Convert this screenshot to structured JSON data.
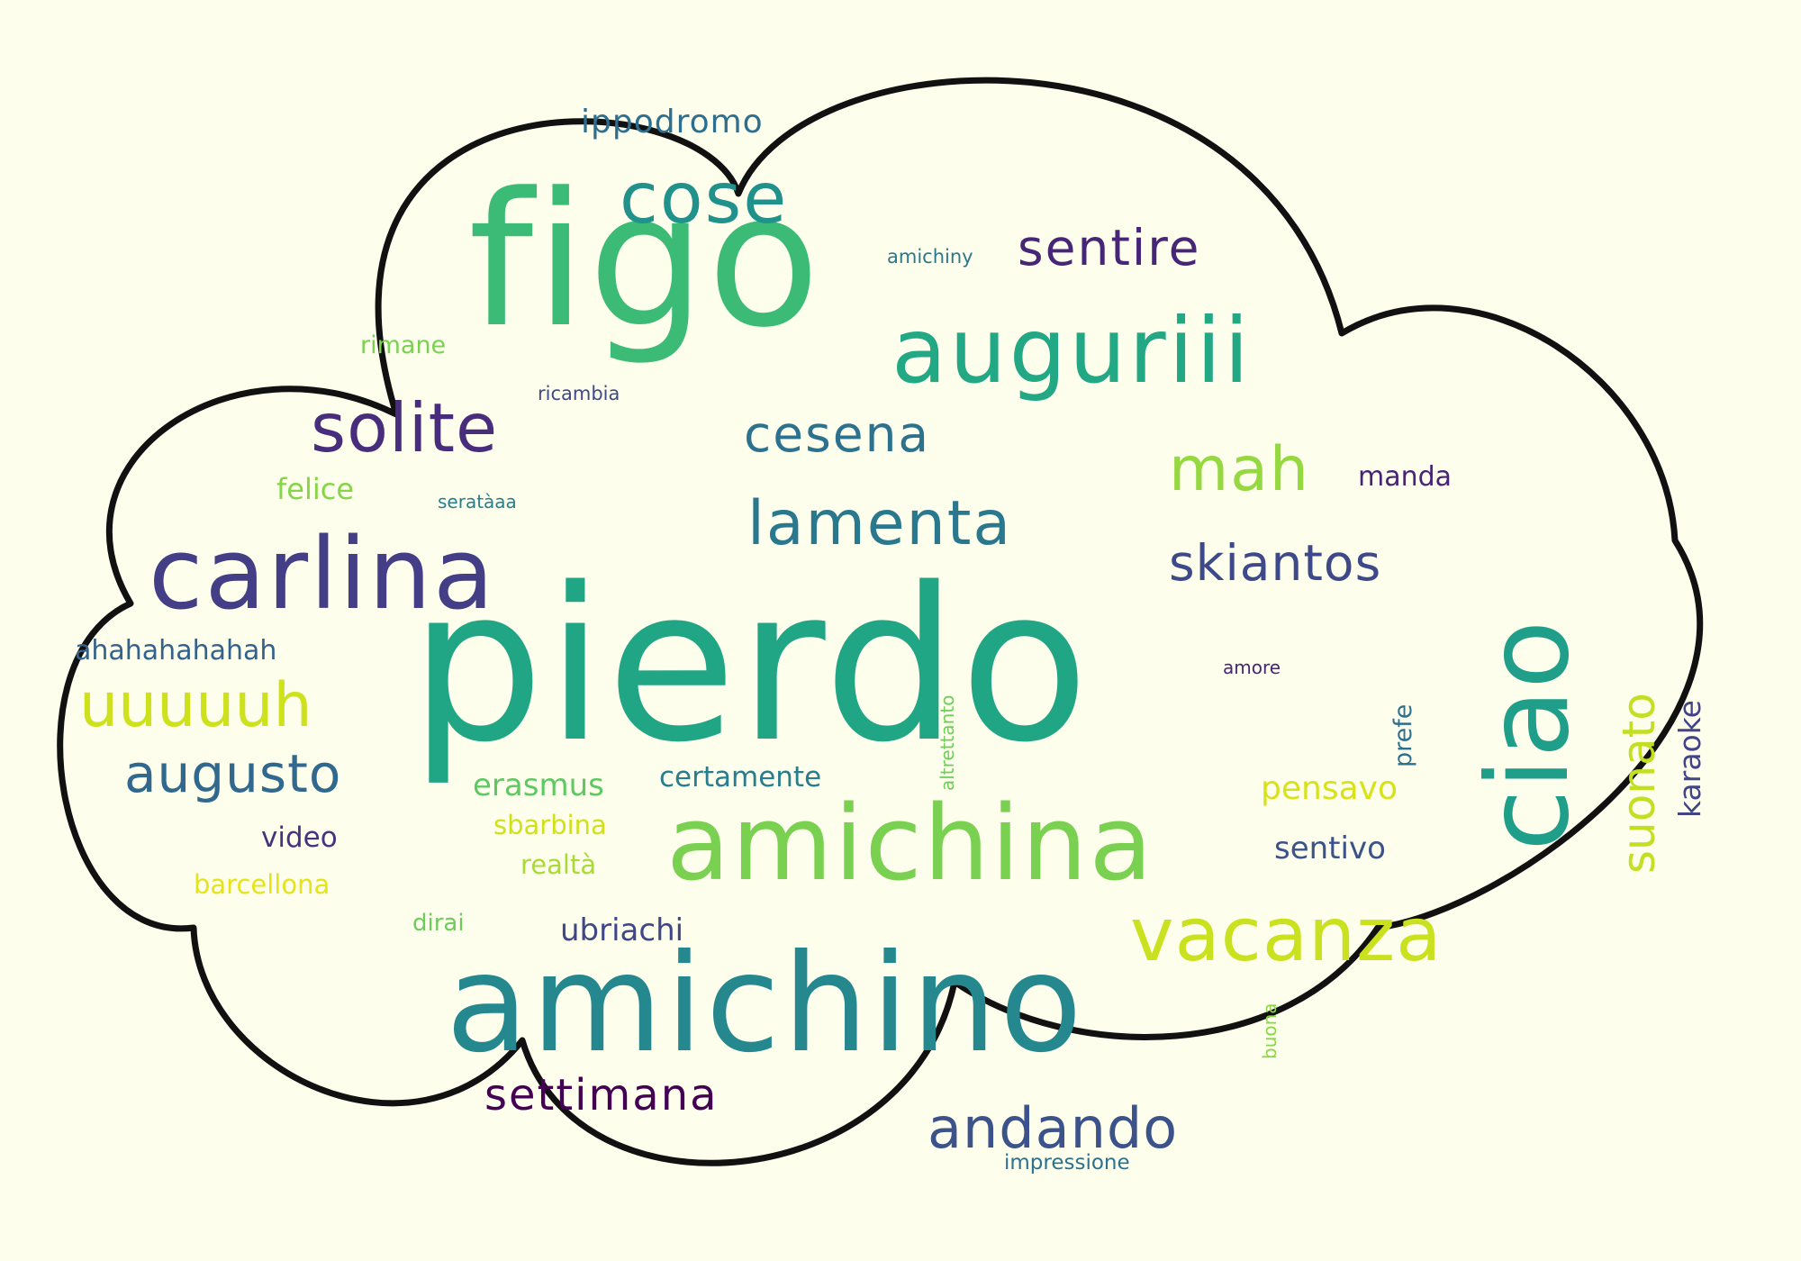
{
  "colors": {
    "background": "#fdfeec",
    "cloud_fill": "#fdfeec",
    "cloud_outline": "#111111"
  },
  "words": [
    {
      "text": "pierdo",
      "color": "#21a685"
    },
    {
      "text": "figo",
      "color": "#3bbb75"
    },
    {
      "text": "amichino",
      "color": "#25888e"
    },
    {
      "text": "amichina",
      "color": "#7ad151"
    },
    {
      "text": "auguriii",
      "color": "#22a884"
    },
    {
      "text": "ciao",
      "color": "#1f9e89"
    },
    {
      "text": "carlina",
      "color": "#433e85"
    },
    {
      "text": "vacanza",
      "color": "#cae11f"
    },
    {
      "text": "cose",
      "color": "#21918c"
    },
    {
      "text": "lamenta",
      "color": "#2a788e"
    },
    {
      "text": "solite",
      "color": "#472d7b"
    },
    {
      "text": "uuuuuh",
      "color": "#cde11d"
    },
    {
      "text": "andando",
      "color": "#3b528b"
    },
    {
      "text": "cesena",
      "color": "#2c728e"
    },
    {
      "text": "sentire",
      "color": "#482677"
    },
    {
      "text": "mah",
      "color": "#95d840"
    },
    {
      "text": "skiantos",
      "color": "#3e4989"
    },
    {
      "text": "augusto",
      "color": "#31688e"
    },
    {
      "text": "settimana",
      "color": "#440154"
    },
    {
      "text": "suonato",
      "color": "#c2df23"
    },
    {
      "text": "ippodromo",
      "color": "#2e6e8e"
    },
    {
      "text": "pensavo",
      "color": "#d8e219"
    },
    {
      "text": "sentivo",
      "color": "#3b528b"
    },
    {
      "text": "certamente",
      "color": "#287d8e"
    },
    {
      "text": "erasmus",
      "color": "#5ec962"
    },
    {
      "text": "ubriachi",
      "color": "#3f4788"
    },
    {
      "text": "ahahahahahah",
      "color": "#33638d"
    },
    {
      "text": "karaoke",
      "color": "#414487"
    },
    {
      "text": "manda",
      "color": "#482475"
    },
    {
      "text": "realtà",
      "color": "#a8db34"
    },
    {
      "text": "sbarbina",
      "color": "#d0e11c"
    },
    {
      "text": "barcellona",
      "color": "#e5e419"
    },
    {
      "text": "video",
      "color": "#46337f"
    },
    {
      "text": "felice",
      "color": "#86d549"
    },
    {
      "text": "rimane",
      "color": "#7ad151"
    },
    {
      "text": "impressione",
      "color": "#2c728e"
    },
    {
      "text": "dirai",
      "color": "#6ccd5a"
    },
    {
      "text": "prefe",
      "color": "#2d708e"
    },
    {
      "text": "amichiny",
      "color": "#2a788e"
    },
    {
      "text": "ricambia",
      "color": "#3e4a89"
    },
    {
      "text": "seratàaa",
      "color": "#277f8e"
    },
    {
      "text": "amore",
      "color": "#482576"
    },
    {
      "text": "altrettanto",
      "color": "#6ece58"
    },
    {
      "text": "buona",
      "color": "#8bd646"
    }
  ]
}
